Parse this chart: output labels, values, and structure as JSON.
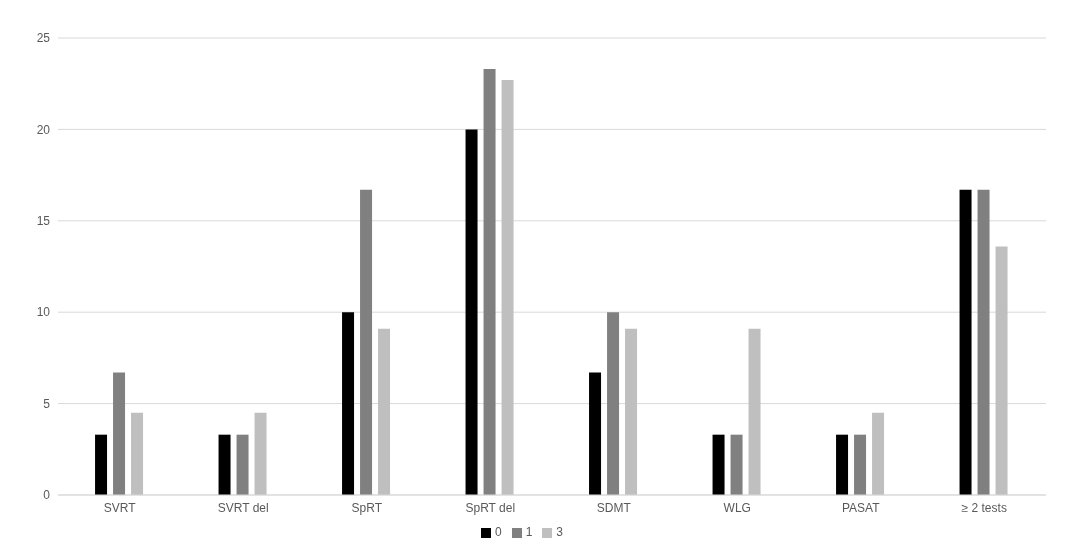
{
  "chart_data": {
    "type": "bar",
    "categories": [
      "SVRT",
      "SVRT del",
      "SpRT",
      "SpRT del",
      "SDMT",
      "WLG",
      "PASAT",
      "≥ 2 tests"
    ],
    "series": [
      {
        "name": "0",
        "color": "#000000",
        "values": [
          3.3,
          3.3,
          10,
          20,
          6.7,
          3.3,
          3.3,
          16.7
        ]
      },
      {
        "name": "1",
        "color": "#808080",
        "values": [
          6.7,
          3.3,
          16.7,
          23.3,
          10,
          3.3,
          3.3,
          16.7
        ]
      },
      {
        "name": "3",
        "color": "#bfbfbf",
        "values": [
          4.5,
          4.5,
          9.1,
          22.7,
          9.1,
          9.1,
          4.5,
          13.6
        ]
      }
    ],
    "ylim": [
      0,
      25
    ],
    "yticks": [
      0,
      5,
      10,
      15,
      20,
      25
    ],
    "grid": "y",
    "legend": "bottom"
  }
}
